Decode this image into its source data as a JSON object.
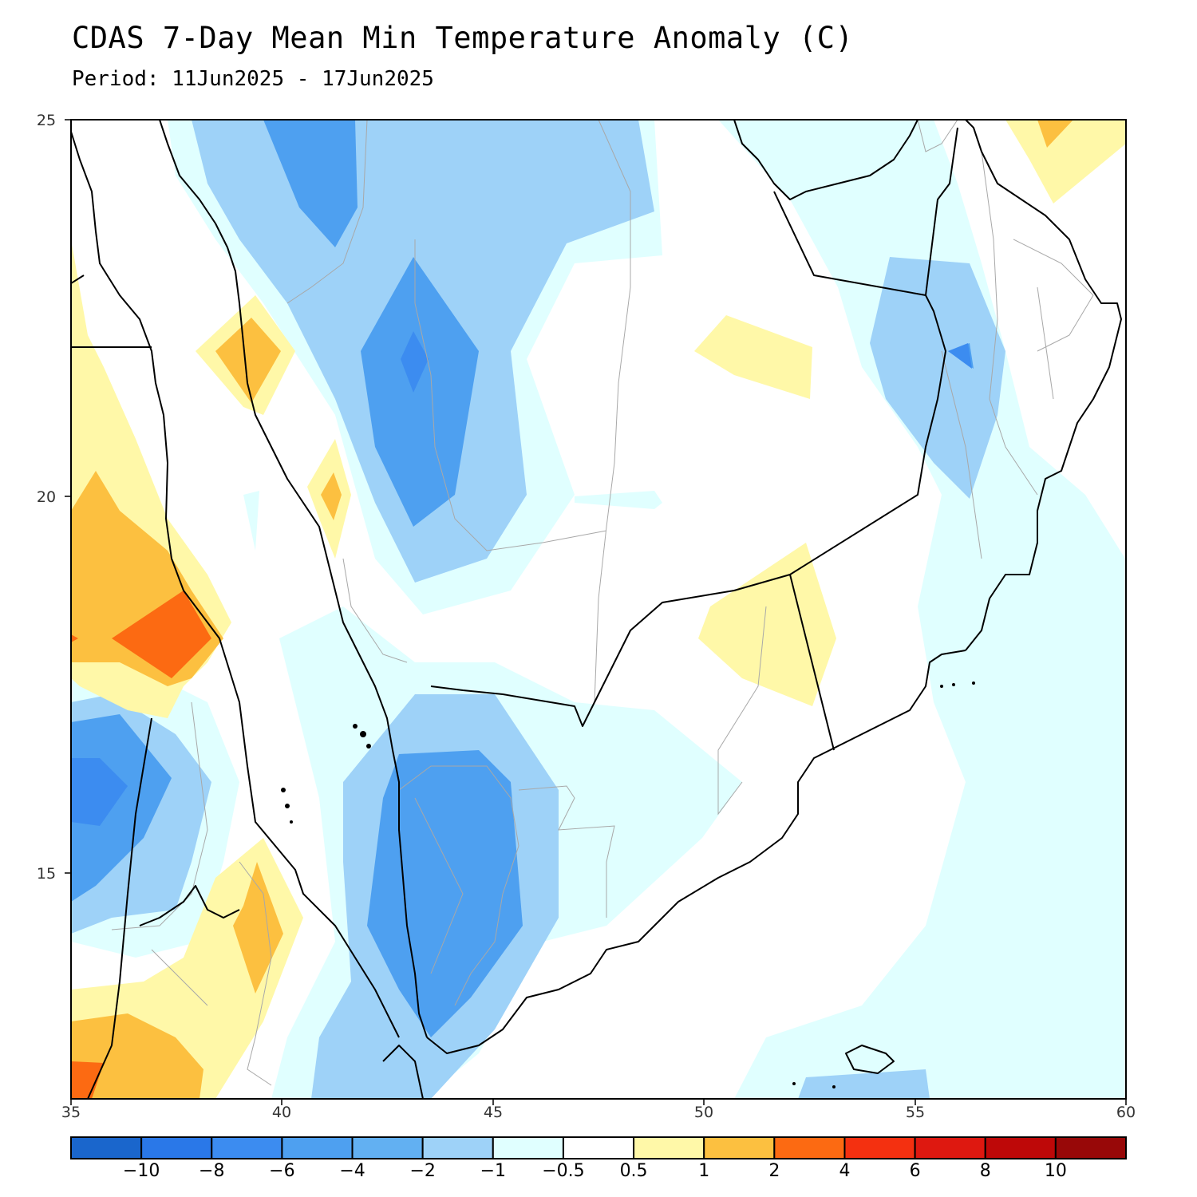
{
  "title": "CDAS 7-Day Mean Min Temperature Anomaly (C)",
  "subtitle": "Period: 11Jun2025 - 17Jun2025",
  "map": {
    "lon_range": [
      35,
      60
    ],
    "lat_range": [
      12,
      25
    ],
    "x_ticks": [
      "35",
      "40",
      "45",
      "50",
      "55",
      "60"
    ],
    "y_ticks": [
      "25",
      "20",
      "15"
    ]
  },
  "colorbar": {
    "colors": [
      "#1a66cc",
      "#2a78e8",
      "#3c8cf0",
      "#4ea0f0",
      "#62b0f2",
      "#9ed2f8",
      "#e0ffff",
      "#ffffff",
      "#fff8a8",
      "#fcc040",
      "#fc6a12",
      "#f43010",
      "#de1810",
      "#be0808",
      "#980808"
    ],
    "labels": [
      "−10",
      "−8",
      "−6",
      "−4",
      "−2",
      "−1",
      "−0.5",
      "0.5",
      "1",
      "2",
      "4",
      "6",
      "8",
      "10"
    ]
  }
}
